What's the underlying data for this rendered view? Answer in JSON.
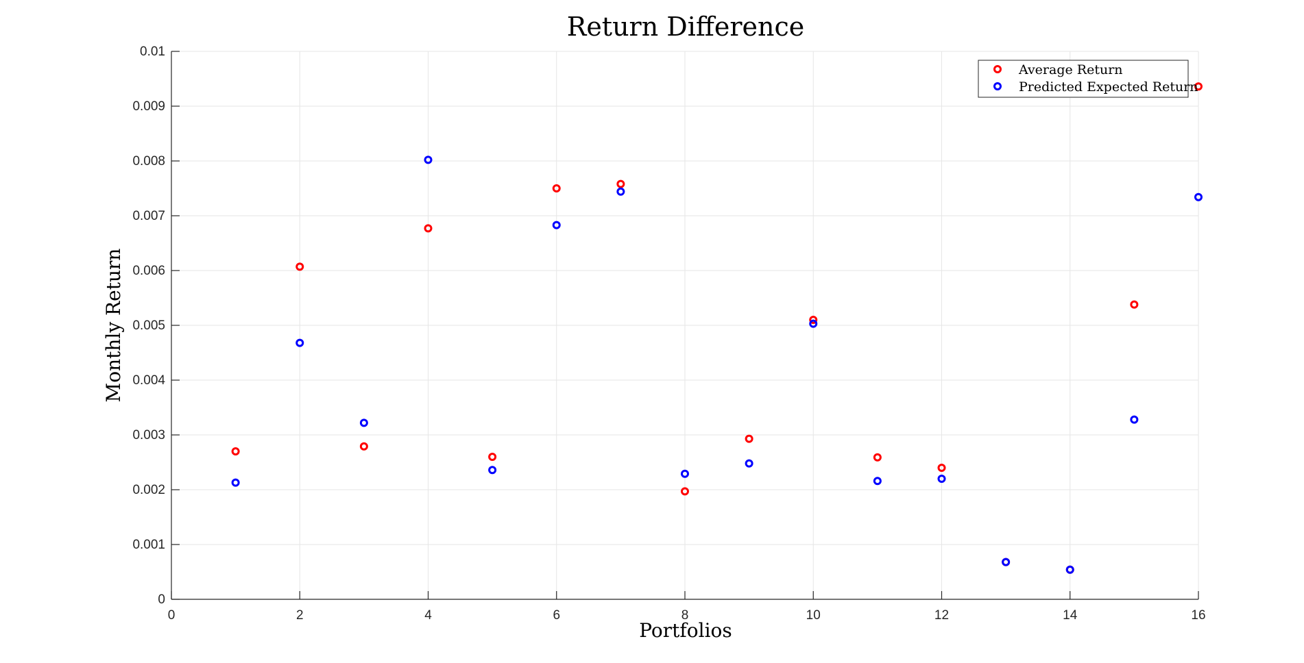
{
  "colors": {
    "average": "#ff0000",
    "predicted": "#0000ff"
  },
  "chart_data": {
    "type": "scatter",
    "title": "Return Difference",
    "xlabel": "Portfolios",
    "ylabel": "Monthly Return",
    "xlim": [
      0,
      16
    ],
    "ylim": [
      0,
      0.01
    ],
    "grid": true,
    "legend_position": "top-right",
    "x_ticks": [
      "0",
      "2",
      "4",
      "6",
      "8",
      "10",
      "12",
      "14",
      "16"
    ],
    "y_ticks": [
      "0",
      "0.001",
      "0.002",
      "0.003",
      "0.004",
      "0.005",
      "0.006",
      "0.007",
      "0.008",
      "0.009",
      "0.01"
    ],
    "x": [
      1,
      2,
      3,
      4,
      5,
      6,
      7,
      8,
      9,
      10,
      11,
      12,
      13,
      14,
      15,
      16
    ],
    "series": [
      {
        "name": "Average Return",
        "color": "#ff0000",
        "values": [
          0.0027,
          0.00607,
          0.00279,
          0.00677,
          0.0026,
          0.0075,
          0.00758,
          0.00197,
          0.00293,
          0.0051,
          0.00259,
          0.0024,
          0.00068,
          0.00054,
          0.00538,
          0.00936
        ]
      },
      {
        "name": "Predicted Expected Return",
        "color": "#0000ff",
        "values": [
          0.00213,
          0.00468,
          0.00322,
          0.00802,
          0.00236,
          0.00683,
          0.00744,
          0.00229,
          0.00248,
          0.00503,
          0.00216,
          0.0022,
          0.00068,
          0.00054,
          0.00328,
          0.00734
        ]
      }
    ]
  }
}
